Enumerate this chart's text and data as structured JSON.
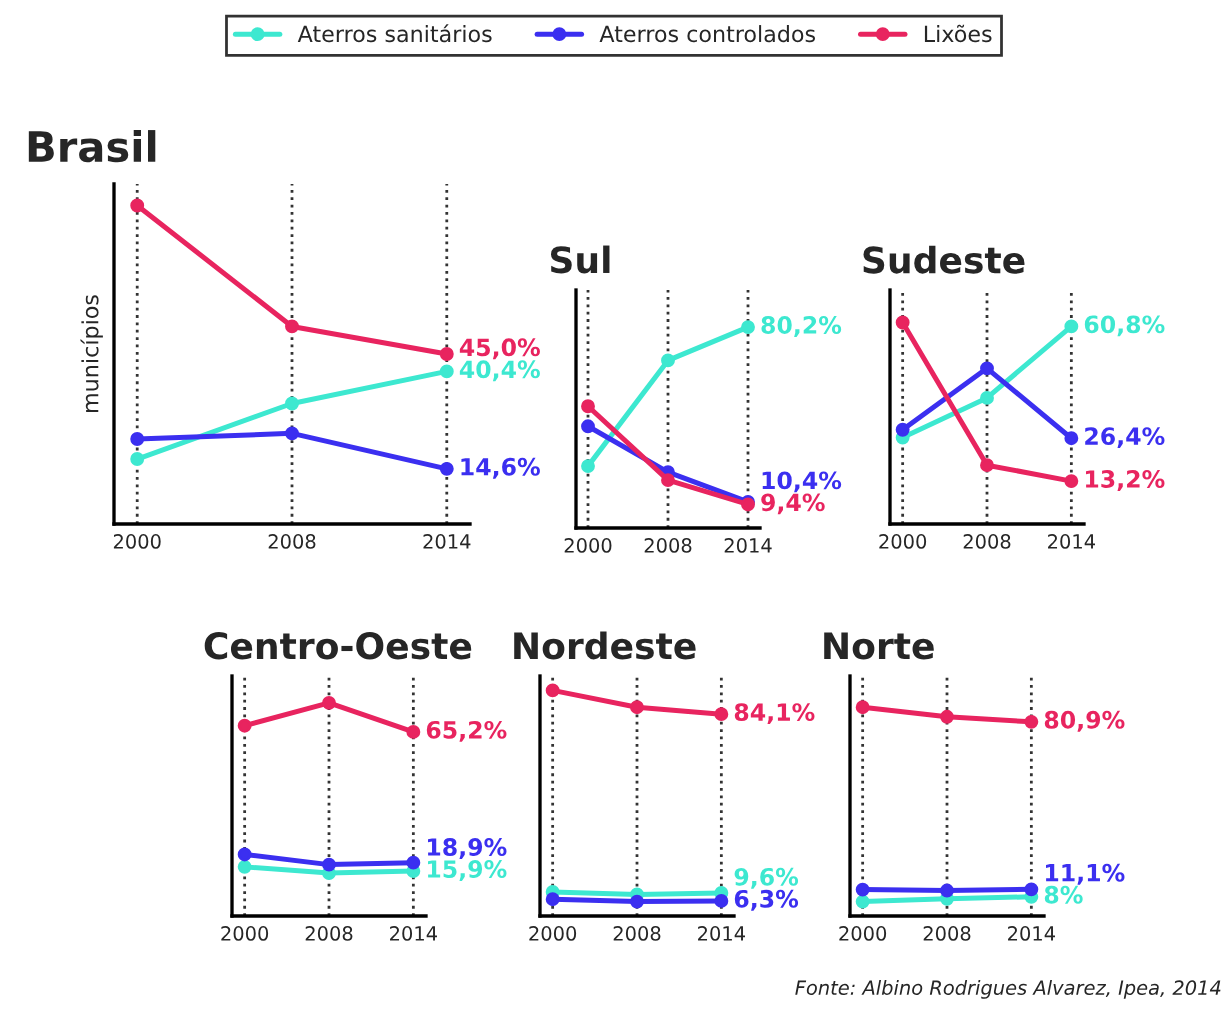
{
  "chart_data": [
    {
      "type": "line",
      "title": "Brasil",
      "ylabel": "municípios",
      "categories": [
        "2000",
        "2008",
        "2014"
      ],
      "ylim": [
        0,
        90
      ],
      "tick_labels": "x",
      "grid": "x",
      "marker": "circle",
      "legend": "top",
      "series": [
        {
          "name": "Aterros sanitários",
          "color": "#3de8d0",
          "values": [
            17.2,
            31.9,
            40.4
          ],
          "value_labels": [
            null,
            null,
            "40,4%"
          ]
        },
        {
          "name": "Aterros controlados",
          "color": "#3b2ff0",
          "values": [
            22.5,
            24.0,
            14.6
          ],
          "value_labels": [
            null,
            null,
            "14,6%"
          ]
        },
        {
          "name": "Lixões",
          "color": "#e8245f",
          "values": [
            84.3,
            52.3,
            45.0
          ],
          "value_labels": [
            null,
            null,
            "45,0%"
          ]
        }
      ]
    },
    {
      "type": "line",
      "title": "Sul",
      "categories": [
        "2000",
        "2008",
        "2014"
      ],
      "ylim": [
        0,
        95
      ],
      "tick_labels": "x",
      "grid": "x",
      "marker": "circle",
      "series": [
        {
          "color": "#3de8d0",
          "values": [
            24.7,
            66.9,
            80.2
          ],
          "value_labels": [
            null,
            null,
            "80,2%"
          ]
        },
        {
          "color": "#3b2ff0",
          "values": [
            40.6,
            22.3,
            10.4
          ],
          "value_labels": [
            null,
            null,
            "10,4%"
          ]
        },
        {
          "color": "#e8245f",
          "values": [
            48.6,
            19.1,
            9.4
          ],
          "value_labels": [
            null,
            null,
            "9,4%"
          ]
        }
      ]
    },
    {
      "type": "line",
      "title": "Sudeste",
      "categories": [
        "2000",
        "2008",
        "2014"
      ],
      "ylim": [
        0,
        72
      ],
      "tick_labels": "x",
      "grid": "x",
      "marker": "circle",
      "series": [
        {
          "color": "#3de8d0",
          "values": [
            26.6,
            38.8,
            60.8
          ],
          "value_labels": [
            null,
            null,
            "60,8%"
          ]
        },
        {
          "color": "#3b2ff0",
          "values": [
            29.0,
            47.9,
            26.4
          ],
          "value_labels": [
            null,
            null,
            "26,4%"
          ]
        },
        {
          "color": "#e8245f",
          "values": [
            62.0,
            18.1,
            13.2
          ],
          "value_labels": [
            null,
            null,
            "13,2%"
          ]
        }
      ]
    },
    {
      "type": "line",
      "title": "Centro-Oeste",
      "categories": [
        "2000",
        "2008",
        "2014"
      ],
      "ylim": [
        0,
        85
      ],
      "tick_labels": "x",
      "grid": "x",
      "marker": "circle",
      "series": [
        {
          "color": "#3de8d0",
          "values": [
            17.4,
            15.2,
            15.9
          ],
          "value_labels": [
            null,
            null,
            "15,9%"
          ]
        },
        {
          "color": "#3b2ff0",
          "values": [
            21.8,
            18.2,
            18.9
          ],
          "value_labels": [
            null,
            null,
            "18,9%"
          ]
        },
        {
          "color": "#e8245f",
          "values": [
            67.4,
            75.5,
            65.2
          ],
          "value_labels": [
            null,
            null,
            "65,2%"
          ]
        }
      ]
    },
    {
      "type": "line",
      "title": "Nordeste",
      "categories": [
        "2000",
        "2008",
        "2014"
      ],
      "ylim": [
        0,
        100
      ],
      "tick_labels": "x",
      "grid": "x",
      "marker": "circle",
      "series": [
        {
          "color": "#3de8d0",
          "values": [
            10,
            9,
            9.6
          ],
          "value_labels": [
            null,
            null,
            "9,6%"
          ]
        },
        {
          "color": "#3b2ff0",
          "values": [
            7,
            6,
            6.3
          ],
          "value_labels": [
            null,
            null,
            "6,3%"
          ]
        },
        {
          "color": "#e8245f",
          "values": [
            94,
            87,
            84.1
          ],
          "value_labels": [
            null,
            null,
            "84,1%"
          ]
        }
      ]
    },
    {
      "type": "line",
      "title": "Norte",
      "categories": [
        "2000",
        "2008",
        "2014"
      ],
      "ylim": [
        0,
        100
      ],
      "tick_labels": "x",
      "grid": "x",
      "marker": "circle",
      "annotations": [
        "Fonte: Albino Rodrigues Alvarez, Ipea, 2014"
      ],
      "series": [
        {
          "color": "#3de8d0",
          "values": [
            6,
            7.2,
            8
          ],
          "value_labels": [
            null,
            null,
            "8%"
          ]
        },
        {
          "color": "#3b2ff0",
          "values": [
            11,
            10.6,
            11.1
          ],
          "value_labels": [
            null,
            null,
            "11,1%"
          ]
        },
        {
          "color": "#e8245f",
          "values": [
            87,
            83,
            80.9
          ],
          "value_labels": [
            null,
            null,
            "80,9%"
          ]
        }
      ]
    }
  ]
}
